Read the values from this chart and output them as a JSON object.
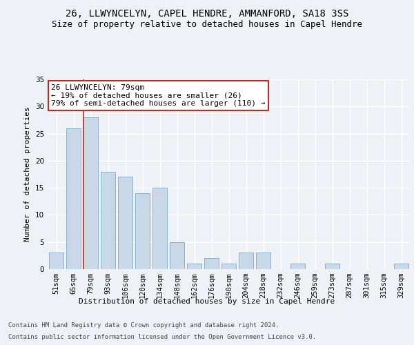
{
  "title": "26, LLWYNCELYN, CAPEL HENDRE, AMMANFORD, SA18 3SS",
  "subtitle": "Size of property relative to detached houses in Capel Hendre",
  "xlabel_bottom": "Distribution of detached houses by size in Capel Hendre",
  "ylabel": "Number of detached properties",
  "footer1": "Contains HM Land Registry data © Crown copyright and database right 2024.",
  "footer2": "Contains public sector information licensed under the Open Government Licence v3.0.",
  "annotation_title": "26 LLWYNCELYN: 79sqm",
  "annotation_line1": "← 19% of detached houses are smaller (26)",
  "annotation_line2": "79% of semi-detached houses are larger (110) →",
  "bar_color": "#c8d8e8",
  "bar_edge_color": "#7aaac8",
  "highlight_color": "#c8281e",
  "categories": [
    "51sqm",
    "65sqm",
    "79sqm",
    "93sqm",
    "106sqm",
    "120sqm",
    "134sqm",
    "148sqm",
    "162sqm",
    "176sqm",
    "190sqm",
    "204sqm",
    "218sqm",
    "232sqm",
    "246sqm",
    "259sqm",
    "273sqm",
    "287sqm",
    "301sqm",
    "315sqm",
    "329sqm"
  ],
  "values": [
    3,
    26,
    28,
    18,
    17,
    14,
    15,
    5,
    1,
    2,
    1,
    3,
    3,
    0,
    1,
    0,
    1,
    0,
    0,
    0,
    1
  ],
  "highlight_index": 2,
  "ylim": [
    0,
    35
  ],
  "yticks": [
    0,
    5,
    10,
    15,
    20,
    25,
    30,
    35
  ],
  "background_color": "#eef2f7",
  "grid_color": "#ffffff",
  "title_fontsize": 10,
  "subtitle_fontsize": 9,
  "axis_label_fontsize": 8,
  "tick_fontsize": 7.5,
  "annotation_box_color": "#ffffff",
  "annotation_box_edge": "#c8281e",
  "annotation_fontsize": 8
}
